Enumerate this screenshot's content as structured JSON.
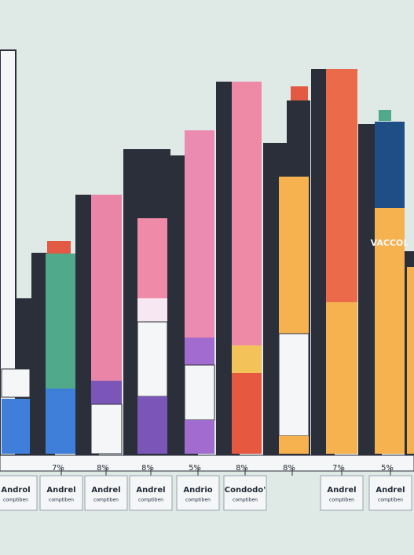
{
  "ticks": [
    "7%",
    "8%",
    "8%",
    "5%",
    "8%",
    "8%",
    "7%",
    "5%"
  ],
  "labels": [
    {
      "name": "Androl",
      "sub": "comptiben"
    },
    {
      "name": "Andrel",
      "sub": "comptiben"
    },
    {
      "name": "Andrel",
      "sub": "comptiben"
    },
    {
      "name": "Andrel",
      "sub": "comptiben"
    },
    {
      "name": "Andrio",
      "sub": "comptiben"
    },
    {
      "name": "Condodo'",
      "sub": "comptiben"
    },
    {
      "name": "Andrel",
      "sub": "comptiben"
    },
    {
      "name": "Andrel",
      "sub": "comptiben"
    }
  ],
  "bar_texts": [
    "VACCOL"
  ]
}
